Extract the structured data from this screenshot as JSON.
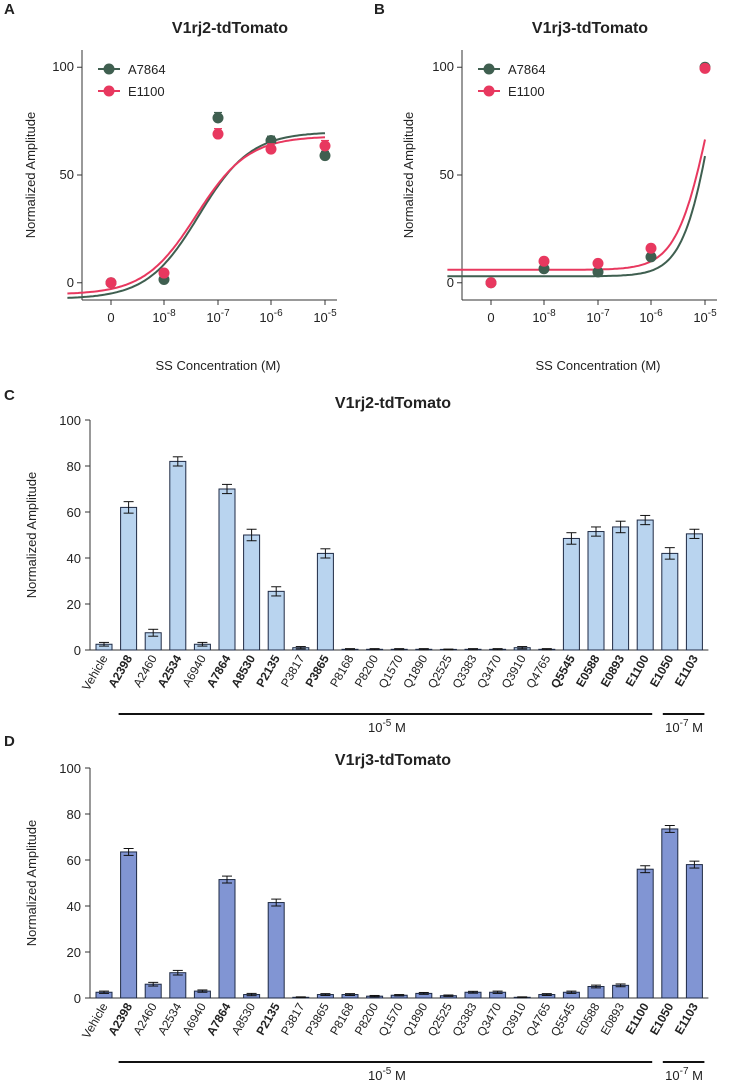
{
  "chart_data": [
    {
      "panel": "A",
      "type": "scatter",
      "title": "V1rj2-tdTomato",
      "xlabel": "SS Concentration (M)",
      "ylabel": "Normalized Amplitude",
      "x_ticks": [
        {
          "base": "0",
          "exp": ""
        },
        {
          "base": "10",
          "exp": "-8"
        },
        {
          "base": "10",
          "exp": "-7"
        },
        {
          "base": "10",
          "exp": "-6"
        },
        {
          "base": "10",
          "exp": "-5"
        }
      ],
      "y_ticks": [
        0,
        50,
        100
      ],
      "ylim": [
        -8,
        108
      ],
      "series": [
        {
          "name": "A7864",
          "color": "#3f5f50",
          "values": [
            0,
            1.5,
            76.5,
            66,
            59
          ],
          "errors": [
            0,
            1.5,
            2.5,
            2,
            2
          ],
          "fit": {
            "bottom": -7.5,
            "top": 70,
            "logec50": -7.35,
            "hill": 0.9
          }
        },
        {
          "name": "E1100",
          "color": "#e8385f",
          "values": [
            0,
            4.5,
            69,
            62,
            63.5
          ],
          "errors": [
            0,
            1.5,
            2.5,
            2.5,
            2.5
          ],
          "fit": {
            "bottom": -5.5,
            "top": 68,
            "logec50": -7.4,
            "hill": 0.9
          }
        }
      ]
    },
    {
      "panel": "B",
      "type": "scatter",
      "title": "V1rj3-tdTomato",
      "xlabel": "SS Concentration (M)",
      "ylabel": "Normalized Amplitude",
      "x_ticks": [
        {
          "base": "0",
          "exp": ""
        },
        {
          "base": "10",
          "exp": "-8"
        },
        {
          "base": "10",
          "exp": "-7"
        },
        {
          "base": "10",
          "exp": "-6"
        },
        {
          "base": "10",
          "exp": "-5"
        }
      ],
      "y_ticks": [
        0,
        50,
        100
      ],
      "ylim": [
        -8,
        108
      ],
      "series": [
        {
          "name": "A7864",
          "color": "#3f5f50",
          "values": [
            0,
            6.5,
            5,
            12,
            100
          ],
          "errors": [
            0,
            1.5,
            1.5,
            1.5,
            1
          ],
          "fit": {
            "bottom": 3,
            "top": 170,
            "logec50": -4.8,
            "hill": 1.5
          }
        },
        {
          "name": "E1100",
          "color": "#e8385f",
          "values": [
            0,
            10,
            9,
            16,
            99.5
          ],
          "errors": [
            0,
            1.5,
            1.5,
            1.5,
            1
          ],
          "fit": {
            "bottom": 6,
            "top": 150,
            "logec50": -4.9,
            "hill": 1.4
          }
        }
      ]
    },
    {
      "panel": "C",
      "type": "bar",
      "title": "V1rj2-tdTomato",
      "ylabel": "Normalized Amplitude",
      "ylim": [
        0,
        100
      ],
      "y_ticks": [
        0,
        20,
        40,
        60,
        80,
        100
      ],
      "bar_color": "#b9d4ef",
      "categories": [
        "Vehicle",
        "A2398",
        "A2460",
        "A2534",
        "A6940",
        "A7864",
        "A8530",
        "P2135",
        "P3817",
        "P3865",
        "P8168",
        "P8200",
        "Q1570",
        "Q1890",
        "Q2525",
        "Q3383",
        "Q3470",
        "Q3910",
        "Q4765",
        "Q5545",
        "E0588",
        "E0893",
        "E1100",
        "E1050",
        "E1103"
      ],
      "bold": [
        "A2398",
        "A2534",
        "A7864",
        "A8530",
        "P2135",
        "P3865",
        "Q5545",
        "E0588",
        "E0893",
        "E1100",
        "E1050",
        "E1103"
      ],
      "values": [
        2.5,
        62,
        7.5,
        82,
        2.5,
        70,
        50,
        25.5,
        1,
        42,
        0.3,
        0.3,
        0.3,
        0.3,
        0.2,
        0.3,
        0.3,
        1,
        0.3,
        48.5,
        51.5,
        53.5,
        56.5,
        42,
        50.5
      ],
      "errors": [
        0.8,
        2.5,
        1.5,
        2,
        0.8,
        2,
        2.5,
        2,
        0.5,
        2,
        0.3,
        0.3,
        0.3,
        0.3,
        0.2,
        0.3,
        0.3,
        0.5,
        0.3,
        2.5,
        2,
        2.5,
        2,
        2.5,
        2
      ],
      "groups": [
        {
          "label_base": "10",
          "label_exp": "-5",
          "label_unit": "M",
          "range": [
            1,
            22
          ]
        },
        {
          "label_base": "10",
          "label_exp": "-7",
          "label_unit": "M",
          "range": [
            23,
            24
          ]
        }
      ]
    },
    {
      "panel": "D",
      "type": "bar",
      "title": "V1rj3-tdTomato",
      "ylabel": "Normalized Amplitude",
      "ylim": [
        0,
        100
      ],
      "y_ticks": [
        0,
        20,
        40,
        60,
        80,
        100
      ],
      "bar_color": "#8195d3",
      "categories": [
        "Vehicle",
        "A2398",
        "A2460",
        "A2534",
        "A6940",
        "A7864",
        "A8530",
        "P2135",
        "P3817",
        "P3865",
        "P8168",
        "P8200",
        "Q1570",
        "Q1890",
        "Q2525",
        "Q3383",
        "Q3470",
        "Q3910",
        "Q4765",
        "Q5545",
        "E0588",
        "E0893",
        "E1100",
        "E1050",
        "E1103"
      ],
      "bold": [
        "A2398",
        "A7864",
        "P2135",
        "E1100",
        "E1050",
        "E1103"
      ],
      "values": [
        2.5,
        63.5,
        6,
        11,
        3,
        51.5,
        1.5,
        41.5,
        0.3,
        1.5,
        1.5,
        0.8,
        1.2,
        2,
        1,
        2.5,
        2.5,
        0.3,
        1.5,
        2.5,
        5,
        5.5,
        56,
        73.5,
        58
      ],
      "errors": [
        0.5,
        1.5,
        0.8,
        1,
        0.5,
        1.5,
        0.5,
        1.5,
        0.2,
        0.4,
        0.4,
        0.3,
        0.3,
        0.4,
        0.3,
        0.4,
        0.5,
        0.2,
        0.4,
        0.5,
        0.6,
        0.6,
        1.5,
        1.5,
        1.5
      ],
      "groups": [
        {
          "label_base": "10",
          "label_exp": "-5",
          "label_unit": "M",
          "range": [
            1,
            22
          ]
        },
        {
          "label_base": "10",
          "label_exp": "-7",
          "label_unit": "M",
          "range": [
            23,
            24
          ]
        }
      ]
    }
  ]
}
